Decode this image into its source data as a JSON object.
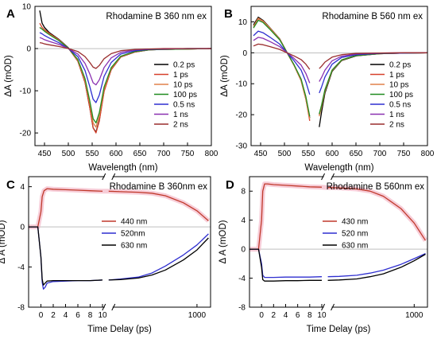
{
  "chart_data": [
    {
      "type": "line",
      "panel": "A",
      "title": "Rhodamine B 360 nm ex",
      "xlabel": "Wavelength (nm)",
      "ylabel": "ΔA (mOD)",
      "xlim": [
        430,
        800
      ],
      "ylim": [
        -23,
        10
      ],
      "x_ticks": [
        450,
        500,
        550,
        600,
        650,
        700,
        750,
        800
      ],
      "y_ticks": [
        -20,
        -10,
        0,
        10
      ],
      "grid": false,
      "legend_position": "right",
      "series": [
        {
          "name": "0.2 ps",
          "color": "#000000",
          "x": [
            440,
            445,
            450,
            460,
            480,
            500,
            520,
            535,
            545,
            552,
            558,
            565,
            575,
            590,
            610,
            640,
            670,
            700,
            750,
            800
          ],
          "y": [
            9,
            6,
            5,
            3.8,
            2.2,
            0.2,
            -3,
            -8,
            -14,
            -18.8,
            -19.8,
            -17,
            -10,
            -5,
            -2,
            -0.8,
            -0.3,
            -0.2,
            -0.1,
            0
          ]
        },
        {
          "name": "1 ps",
          "color": "#d6402b",
          "x": [
            440,
            445,
            450,
            460,
            480,
            500,
            520,
            535,
            545,
            552,
            558,
            565,
            575,
            590,
            610,
            640,
            670,
            700,
            750,
            800
          ],
          "y": [
            6,
            5,
            4.5,
            3.6,
            2.1,
            0.1,
            -3,
            -8,
            -14,
            -18.8,
            -20,
            -17.2,
            -10.2,
            -5,
            -2,
            -0.8,
            -0.3,
            -0.2,
            -0.1,
            0
          ]
        },
        {
          "name": "10 ps",
          "color": "#e0804a",
          "x": [
            440,
            445,
            450,
            460,
            480,
            500,
            520,
            535,
            545,
            552,
            558,
            565,
            575,
            590,
            610,
            640,
            670,
            700,
            750,
            800
          ],
          "y": [
            5,
            4.6,
            4.2,
            3.4,
            2,
            0.1,
            -2.8,
            -7.6,
            -13,
            -17.6,
            -18.6,
            -16,
            -9.6,
            -4.7,
            -1.9,
            -0.7,
            -0.3,
            -0.2,
            -0.1,
            0
          ]
        },
        {
          "name": "100 ps",
          "color": "#1f8c1f",
          "x": [
            440,
            445,
            450,
            460,
            480,
            500,
            520,
            535,
            545,
            552,
            558,
            565,
            575,
            590,
            610,
            640,
            670,
            700,
            750,
            800
          ],
          "y": [
            5,
            4.6,
            4.1,
            3.3,
            1.9,
            0.1,
            -2.6,
            -7.1,
            -12.4,
            -16.6,
            -17.6,
            -15.2,
            -9.1,
            -4.5,
            -1.8,
            -0.7,
            -0.3,
            -0.2,
            -0.1,
            0
          ]
        },
        {
          "name": "0.5 ns",
          "color": "#2f2fd0",
          "x": [
            440,
            445,
            450,
            460,
            480,
            500,
            520,
            535,
            545,
            552,
            558,
            565,
            575,
            590,
            610,
            640,
            670,
            700,
            750,
            800
          ],
          "y": [
            3.8,
            3.5,
            3.1,
            2.5,
            1.4,
            0,
            -1.9,
            -5.2,
            -9,
            -12,
            -12.8,
            -11,
            -6.6,
            -3.3,
            -1.3,
            -0.5,
            -0.2,
            -0.1,
            0,
            0
          ]
        },
        {
          "name": "1 ns",
          "color": "#8a30b0",
          "x": [
            440,
            445,
            450,
            460,
            480,
            500,
            520,
            535,
            545,
            552,
            558,
            565,
            575,
            590,
            610,
            640,
            670,
            700,
            750,
            800
          ],
          "y": [
            2.6,
            2.4,
            2.1,
            1.7,
            1,
            0,
            -1.3,
            -3.5,
            -6,
            -8.1,
            -8.6,
            -7.4,
            -4.5,
            -2.2,
            -0.9,
            -0.3,
            -0.1,
            -0.1,
            0,
            0
          ]
        },
        {
          "name": "2 ns",
          "color": "#9a2d2d",
          "x": [
            440,
            445,
            450,
            460,
            480,
            500,
            520,
            535,
            545,
            552,
            558,
            565,
            575,
            590,
            610,
            640,
            670,
            700,
            750,
            800
          ],
          "y": [
            1.4,
            1.3,
            1.1,
            0.9,
            0.5,
            0,
            -0.7,
            -1.9,
            -3.3,
            -4.4,
            -4.7,
            -4,
            -2.4,
            -1.2,
            -0.5,
            -0.2,
            -0.1,
            0,
            0,
            0
          ]
        }
      ]
    },
    {
      "type": "line",
      "panel": "B",
      "title": "Rhodamine B 560 nm ex",
      "xlabel": "Wavelength (nm)",
      "ylabel": "ΔA (mOD)",
      "xlim": [
        430,
        800
      ],
      "ylim": [
        -30,
        15
      ],
      "x_ticks": [
        450,
        500,
        550,
        600,
        650,
        700,
        750,
        800
      ],
      "y_ticks": [
        -30,
        -20,
        -10,
        0,
        10
      ],
      "grid": false,
      "legend_position": "right",
      "series": [
        {
          "name": "0.2 ps",
          "color": "#000000",
          "x": [
            435,
            445,
            455,
            470,
            490,
            505,
            520,
            535,
            545,
            553,
            560,
            573,
            578,
            585,
            600,
            620,
            650,
            700,
            750,
            800
          ],
          "y": [
            9,
            11.5,
            10.5,
            8,
            4.5,
            0.2,
            -4,
            -9,
            -15,
            -21,
            null,
            -24,
            -19,
            -13,
            -6,
            -2.5,
            -1,
            -0.3,
            -0.1,
            0
          ]
        },
        {
          "name": "1 ps",
          "color": "#d6402b",
          "x": [
            435,
            445,
            455,
            470,
            490,
            505,
            520,
            535,
            545,
            553,
            560,
            573,
            578,
            585,
            600,
            620,
            650,
            700,
            750,
            800
          ],
          "y": [
            8.5,
            11,
            10.2,
            7.8,
            4.4,
            0.2,
            -4,
            -9,
            -15,
            -22,
            null,
            -20,
            -17,
            -12,
            -5.6,
            -2.3,
            -0.9,
            -0.3,
            -0.1,
            0
          ]
        },
        {
          "name": "10 ps",
          "color": "#e0804a",
          "x": [
            435,
            445,
            455,
            470,
            490,
            505,
            520,
            535,
            545,
            553,
            560,
            573,
            578,
            585,
            600,
            620,
            650,
            700,
            750,
            800
          ],
          "y": [
            8.5,
            11.2,
            10.3,
            7.9,
            4.4,
            0.2,
            -4,
            -9,
            -15,
            -21.5,
            null,
            -20.5,
            -17.5,
            -12.4,
            -5.8,
            -2.4,
            -0.9,
            -0.3,
            -0.1,
            0
          ]
        },
        {
          "name": "100 ps",
          "color": "#1f8c1f",
          "x": [
            435,
            445,
            455,
            470,
            490,
            505,
            520,
            535,
            545,
            553,
            560,
            573,
            578,
            585,
            600,
            620,
            650,
            700,
            750,
            800
          ],
          "y": [
            8,
            10.5,
            9.8,
            7.5,
            4.2,
            0.2,
            -3.8,
            -8.5,
            -14.2,
            -20.5,
            null,
            -19.8,
            -16.8,
            -11.9,
            -5.6,
            -2.3,
            -0.9,
            -0.3,
            -0.1,
            0
          ]
        },
        {
          "name": "0.5 ns",
          "color": "#2f2fd0",
          "x": [
            435,
            445,
            455,
            470,
            490,
            505,
            520,
            535,
            545,
            553,
            560,
            573,
            578,
            585,
            600,
            620,
            650,
            700,
            750,
            800
          ],
          "y": [
            5.5,
            7,
            6.5,
            5,
            2.8,
            0.1,
            -2.5,
            -5.6,
            -9.4,
            -13.5,
            null,
            -13,
            -11,
            -7.8,
            -3.7,
            -1.5,
            -0.6,
            -0.2,
            -0.1,
            0
          ]
        },
        {
          "name": "1 ns",
          "color": "#8a30b0",
          "x": [
            435,
            445,
            455,
            470,
            490,
            505,
            520,
            535,
            545,
            553,
            560,
            573,
            578,
            585,
            600,
            620,
            650,
            700,
            750,
            800
          ],
          "y": [
            4,
            5,
            4.7,
            3.6,
            2,
            0.1,
            -1.8,
            -4,
            -6.7,
            -9.8,
            null,
            -9.3,
            -7.9,
            -5.6,
            -2.6,
            -1.1,
            -0.4,
            -0.1,
            0,
            0
          ]
        },
        {
          "name": "2 ns",
          "color": "#9a2d2d",
          "x": [
            435,
            445,
            455,
            470,
            490,
            505,
            520,
            535,
            545,
            553,
            560,
            573,
            578,
            585,
            600,
            620,
            650,
            700,
            750,
            800
          ],
          "y": [
            2.2,
            2.8,
            2.6,
            2,
            1.1,
            0,
            -1,
            -2.2,
            -3.7,
            -5.4,
            null,
            -5.1,
            -4.3,
            -3,
            -1.4,
            -0.6,
            -0.2,
            -0.1,
            0,
            0
          ]
        }
      ]
    },
    {
      "type": "line",
      "panel": "C",
      "title": "Rhodamine B 360nm ex",
      "xlabel": "Time Delay (ps)",
      "ylabel": "Δ A (mOD)",
      "x_scale": "broken: linear -2 to 11, then log 11 to 2000",
      "xlim": [
        -2,
        2000
      ],
      "ylim": [
        -8,
        5
      ],
      "x_ticks": [
        "0",
        "2",
        "4",
        "6",
        "8",
        "10",
        "1000"
      ],
      "y_ticks": [
        -8,
        -4,
        0,
        4
      ],
      "grid": false,
      "legend_position": "right",
      "series": [
        {
          "name": "440 nm",
          "color": "#c0392b",
          "x": [
            -2,
            -1,
            -0.5,
            0,
            0.2,
            0.5,
            1,
            2,
            4,
            6,
            8,
            10,
            11,
            20,
            50,
            100,
            200,
            500,
            1000,
            1800
          ],
          "y": [
            0,
            0,
            0,
            1.5,
            3,
            3.6,
            3.8,
            3.75,
            3.7,
            3.65,
            3.6,
            3.55,
            3.55,
            3.5,
            3.45,
            3.35,
            3.1,
            2.4,
            1.6,
            0.6
          ]
        },
        {
          "name": "520nm",
          "color": "#2f2fd0",
          "x": [
            -2,
            -1,
            -0.5,
            0,
            0.2,
            0.4,
            0.7,
            1,
            2,
            4,
            6,
            8,
            10,
            11,
            20,
            50,
            100,
            200,
            500,
            1000,
            1800
          ],
          "y": [
            0,
            0,
            0,
            -3,
            -5.5,
            -6.2,
            -6,
            -5.6,
            -5.45,
            -5.4,
            -5.35,
            -5.35,
            -5.3,
            -5.3,
            -5.2,
            -5,
            -4.6,
            -3.9,
            -2.8,
            -1.8,
            -0.7
          ]
        },
        {
          "name": "630 nm",
          "color": "#000000",
          "x": [
            -2,
            -1,
            -0.5,
            0,
            0.2,
            0.4,
            0.7,
            1,
            2,
            4,
            6,
            8,
            10,
            11,
            20,
            50,
            100,
            200,
            500,
            1000,
            1800
          ],
          "y": [
            0,
            0,
            0,
            -3,
            -5.2,
            -5.8,
            -5.6,
            -5.4,
            -5.35,
            -5.35,
            -5.35,
            -5.35,
            -5.3,
            -5.3,
            -5.25,
            -5.1,
            -4.8,
            -4.3,
            -3.3,
            -2.3,
            -1.1
          ]
        }
      ]
    },
    {
      "type": "line",
      "panel": "D",
      "title": "Rhodamine B 560nm ex",
      "xlabel": "Time Delay (ps)",
      "ylabel": "Δ A (mOD)",
      "x_scale": "broken: linear -2 to 11, then log 11 to 2000",
      "xlim": [
        -2,
        2000
      ],
      "ylim": [
        -8,
        10
      ],
      "x_ticks": [
        "0",
        "2",
        "4",
        "6",
        "8",
        "10",
        "1000"
      ],
      "y_ticks": [
        -8,
        -4,
        0,
        4,
        8
      ],
      "grid": false,
      "legend_position": "right",
      "series": [
        {
          "name": "430 nm",
          "color": "#c0392b",
          "x": [
            -2,
            -1,
            -0.5,
            0,
            0.2,
            0.5,
            1,
            2,
            4,
            6,
            8,
            10,
            11,
            20,
            50,
            100,
            200,
            500,
            1000,
            1800
          ],
          "y": [
            0,
            0,
            0,
            4,
            8,
            9,
            9,
            8.9,
            8.8,
            8.7,
            8.6,
            8.55,
            8.5,
            8.45,
            8.3,
            8,
            7.3,
            5.6,
            3.6,
            1.2
          ]
        },
        {
          "name": "520 nm",
          "color": "#2f2fd0",
          "x": [
            -2,
            -1,
            -0.5,
            0,
            0.2,
            0.5,
            1,
            2,
            4,
            6,
            8,
            10,
            11,
            20,
            50,
            100,
            200,
            500,
            1000,
            1800
          ],
          "y": [
            0,
            0,
            0,
            -2,
            -3.6,
            -3.9,
            -3.9,
            -3.9,
            -3.85,
            -3.85,
            -3.85,
            -3.8,
            -3.8,
            -3.75,
            -3.6,
            -3.3,
            -2.9,
            -2.1,
            -1.3,
            -0.6
          ]
        },
        {
          "name": "630 nm",
          "color": "#000000",
          "x": [
            -2,
            -1,
            -0.5,
            0,
            0.2,
            0.5,
            1,
            2,
            4,
            6,
            8,
            10,
            11,
            20,
            50,
            100,
            200,
            500,
            1000,
            1800
          ],
          "y": [
            0,
            0,
            0,
            -2.5,
            -4.2,
            -4.4,
            -4.4,
            -4.4,
            -4.35,
            -4.35,
            -4.3,
            -4.3,
            -4.3,
            -4.25,
            -4.1,
            -3.8,
            -3.4,
            -2.5,
            -1.6,
            -0.7
          ]
        }
      ]
    }
  ]
}
